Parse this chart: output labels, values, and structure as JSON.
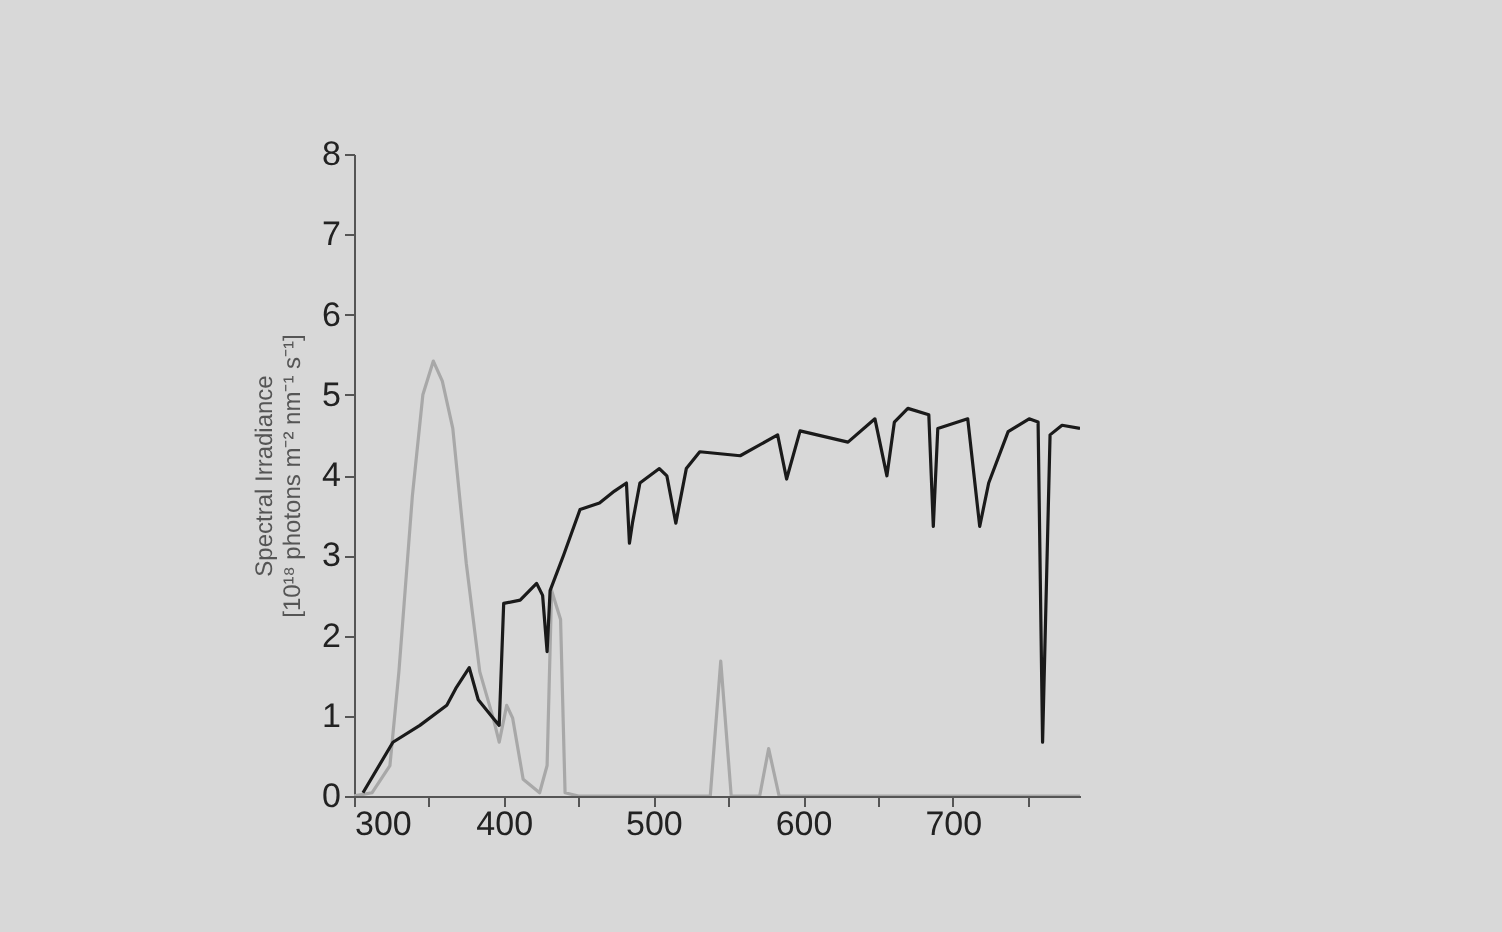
{
  "chart_data": {
    "type": "line",
    "ylabel": "Spectral Irradiance\n[10¹⁸ photons m⁻² nm⁻¹ s⁻¹]",
    "xlim": [
      300,
      785
    ],
    "ylim": [
      0,
      8
    ],
    "xticks": [
      300,
      {
        "value": 350,
        "label": null
      },
      400,
      {
        "value": 450,
        "label": null
      },
      500,
      {
        "value": 550,
        "label": null
      },
      600,
      {
        "value": 650,
        "label": null
      },
      700,
      {
        "value": 750,
        "label": null
      }
    ],
    "yticks": [
      0,
      1,
      2,
      3,
      4,
      5,
      6,
      7,
      8
    ],
    "line_style": "solid",
    "series": [
      {
        "color": "#a8a8a8",
        "x": [
          300,
          312,
          324,
          330,
          339,
          346,
          353,
          359,
          366,
          375,
          384,
          393,
          397,
          402,
          406,
          413,
          424,
          429,
          432,
          438,
          441,
          450,
          538,
          545,
          552,
          571,
          577,
          584,
          600,
          785
        ],
        "values": [
          0,
          0.04,
          0.38,
          1.55,
          3.74,
          5.0,
          5.42,
          5.17,
          4.58,
          2.9,
          1.55,
          0.97,
          0.67,
          1.13,
          0.97,
          0.21,
          0.04,
          0.38,
          2.56,
          2.2,
          0.04,
          0,
          0,
          1.68,
          0,
          0,
          0.59,
          0,
          0,
          0
        ]
      },
      {
        "color": "#1a1a1a",
        "x": [
          306,
          326,
          344,
          362,
          368,
          377,
          383,
          393,
          397,
          400,
          411,
          422,
          426,
          429,
          431,
          440,
          451,
          464,
          474,
          482,
          484,
          486,
          491,
          504,
          509,
          515,
          516,
          522,
          531,
          558,
          583,
          589,
          598,
          630,
          648,
          656,
          661,
          670,
          684,
          687,
          690,
          710,
          718,
          724,
          737,
          751,
          757,
          760,
          765,
          773,
          785
        ],
        "values": [
          0.04,
          0.67,
          0.88,
          1.13,
          1.34,
          1.6,
          1.2,
          0.97,
          0.88,
          2.4,
          2.44,
          2.65,
          2.5,
          1.8,
          2.56,
          3.0,
          3.57,
          3.65,
          3.8,
          3.9,
          3.15,
          3.4,
          3.9,
          4.08,
          3.99,
          3.4,
          3.5,
          4.08,
          4.29,
          4.24,
          4.5,
          3.95,
          4.55,
          4.41,
          4.7,
          3.99,
          4.66,
          4.83,
          4.75,
          3.36,
          4.58,
          4.7,
          3.36,
          3.9,
          4.54,
          4.7,
          4.66,
          0.67,
          4.5,
          4.62,
          4.58
        ]
      }
    ]
  }
}
